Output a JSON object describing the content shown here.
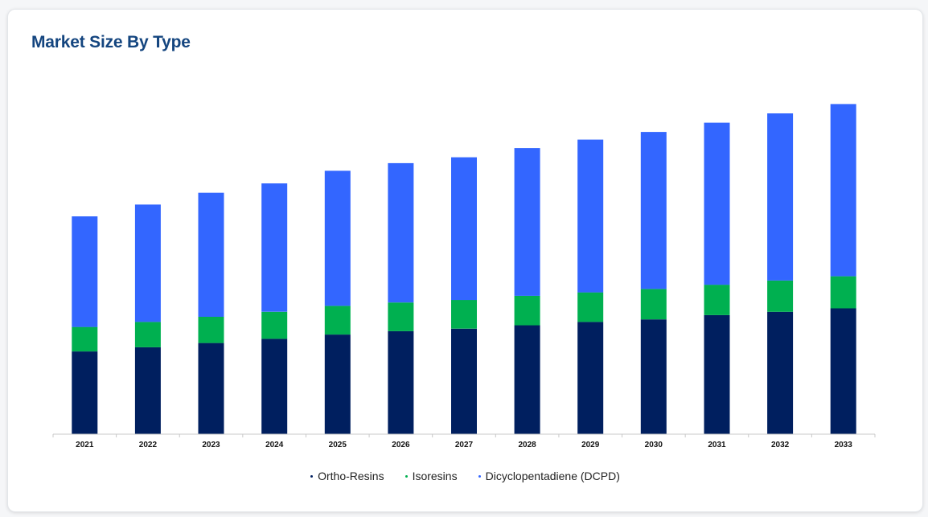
{
  "title": "Market Size By Type",
  "colors": {
    "ortho_resins": "#001f5f",
    "isoresins": "#00b050",
    "dcpd": "#3366ff",
    "title": "#14457f"
  },
  "chart_data": {
    "type": "bar",
    "stacked": true,
    "title": "Market Size By Type",
    "xlabel": "",
    "ylabel": "",
    "y_axis_visible": false,
    "grid": false,
    "legend_position": "bottom",
    "ylim": [
      0,
      400
    ],
    "categories": [
      "2021",
      "2022",
      "2023",
      "2024",
      "2025",
      "2026",
      "2027",
      "2028",
      "2029",
      "2030",
      "2031",
      "2032",
      "2033"
    ],
    "series": [
      {
        "name": "Ortho-Resins",
        "color": "#001f5f",
        "values": [
          98,
          103,
          108,
          113,
          118,
          122,
          125,
          129,
          133,
          136,
          141,
          145,
          149
        ]
      },
      {
        "name": "Isoresins",
        "color": "#00b050",
        "values": [
          29,
          30,
          31,
          32,
          34,
          34,
          34,
          35,
          35,
          36,
          36,
          37,
          38
        ]
      },
      {
        "name": "Dicyclopentadiene (DCPD)",
        "color": "#3366ff",
        "values": [
          131,
          139,
          147,
          152,
          160,
          165,
          169,
          175,
          181,
          186,
          192,
          198,
          204
        ]
      }
    ]
  }
}
